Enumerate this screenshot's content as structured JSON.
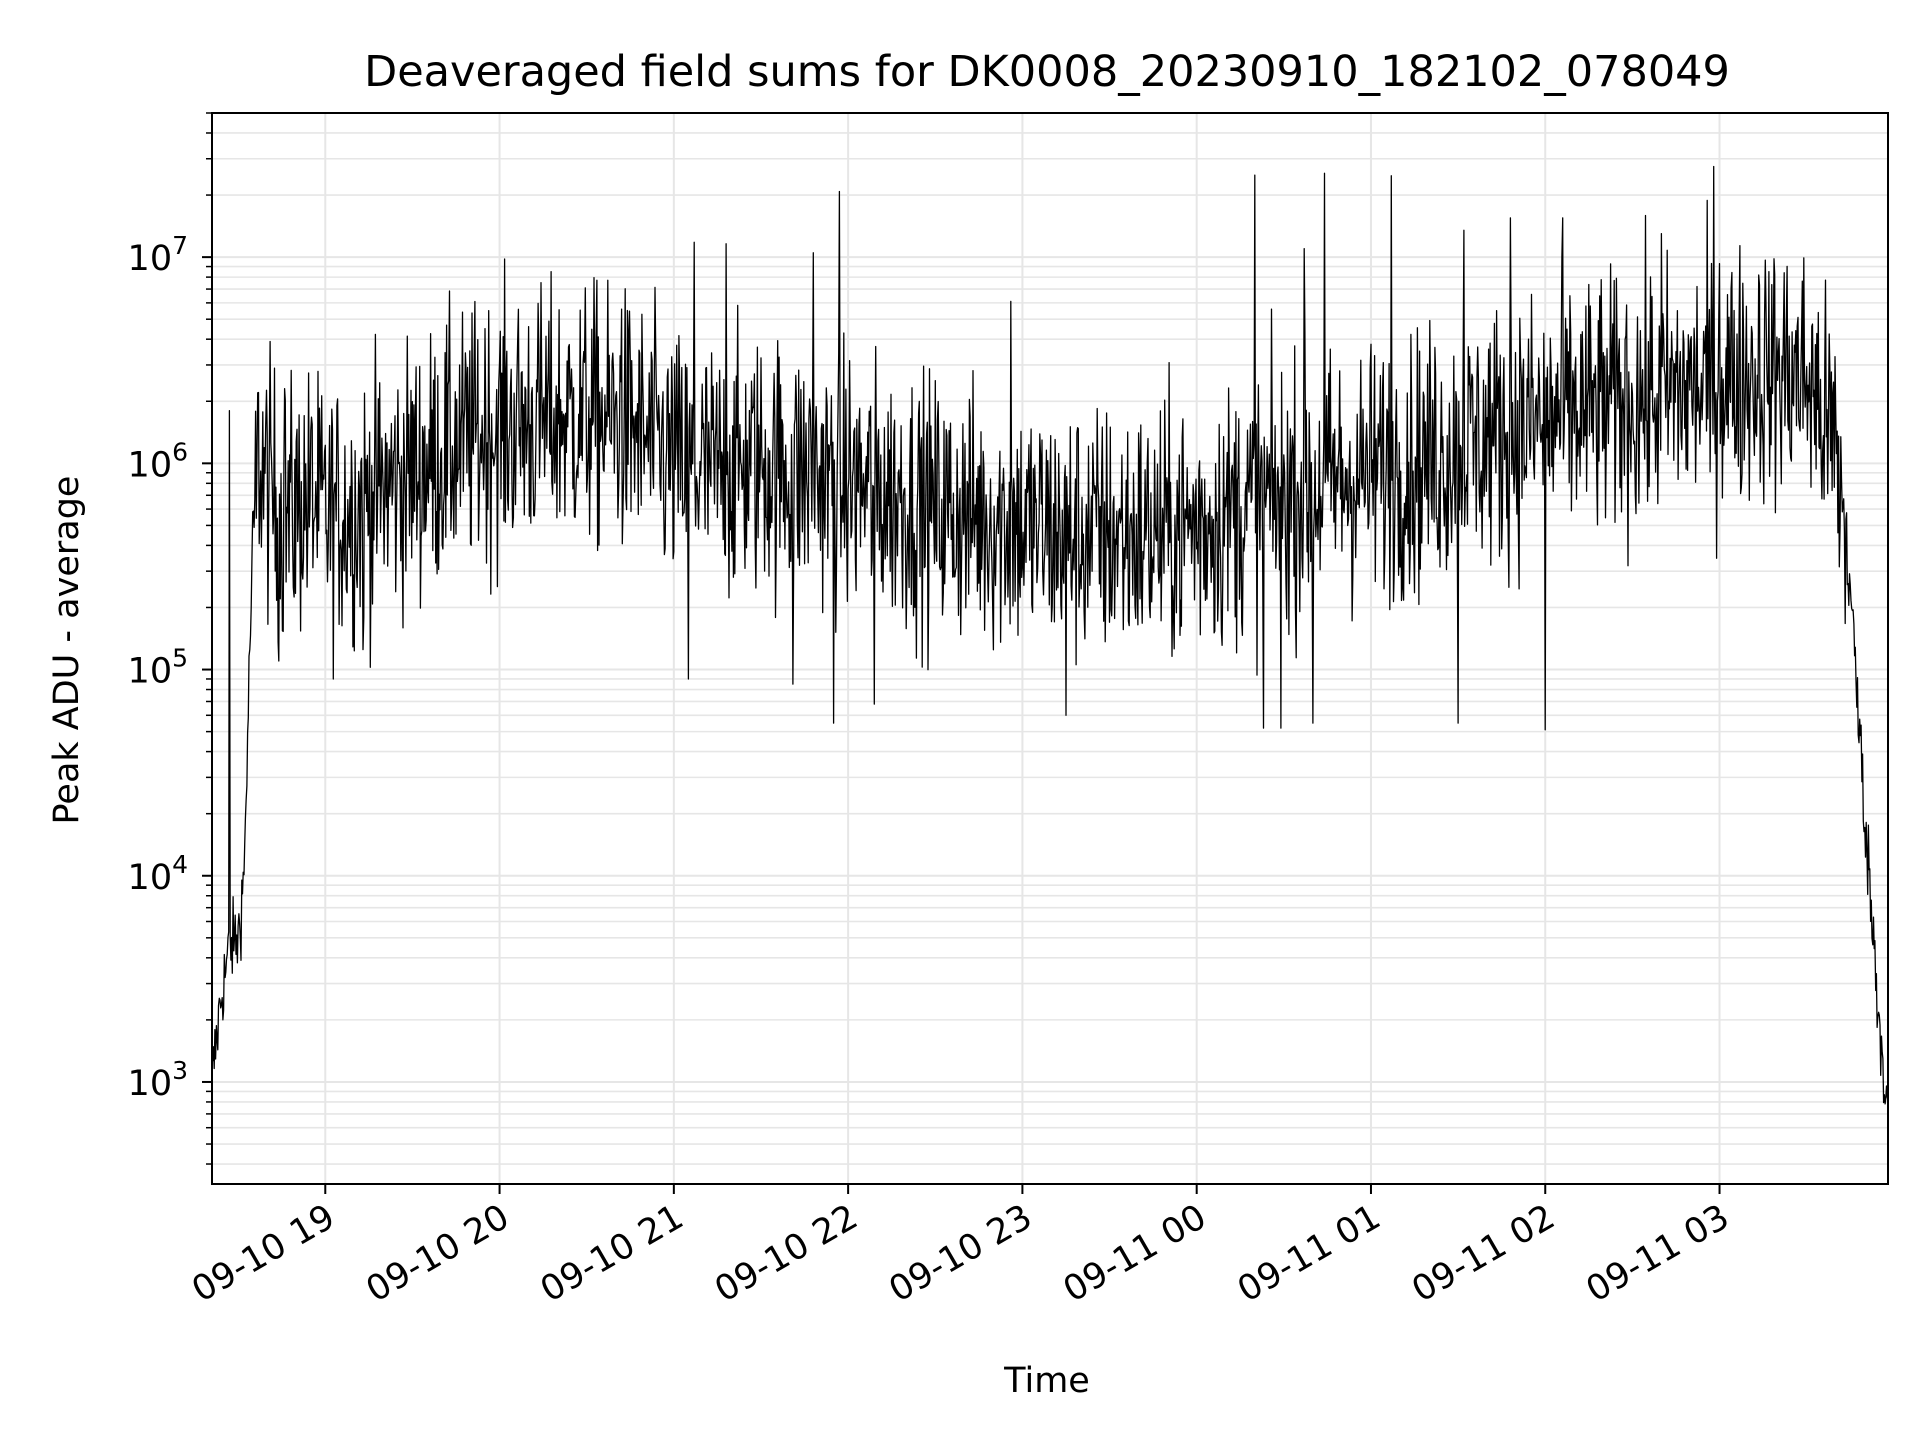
{
  "chart_data": {
    "type": "line",
    "title": "Deaveraged field sums for DK0008_20230910_182102_078049",
    "xlabel": "Time",
    "ylabel": "Peak ADU - average",
    "x_start": "09-10 18:21",
    "x_end": "09-11 03:58",
    "xticks": [
      {
        "time": "09-10 19:00",
        "label": "09-10 19"
      },
      {
        "time": "09-10 20:00",
        "label": "09-10 20"
      },
      {
        "time": "09-10 21:00",
        "label": "09-10 21"
      },
      {
        "time": "09-10 22:00",
        "label": "09-10 22"
      },
      {
        "time": "09-10 23:00",
        "label": "09-10 23"
      },
      {
        "time": "09-11 00:00",
        "label": "09-11 00"
      },
      {
        "time": "09-11 01:00",
        "label": "09-11 01"
      },
      {
        "time": "09-11 02:00",
        "label": "09-11 02"
      },
      {
        "time": "09-11 03:00",
        "label": "09-11 03"
      }
    ],
    "yscale": "log",
    "ylim": [
      320,
      50000000
    ],
    "yticks": [
      {
        "value": 1000,
        "base": "10",
        "exp": "3"
      },
      {
        "value": 10000,
        "base": "10",
        "exp": "4"
      },
      {
        "value": 100000,
        "base": "10",
        "exp": "5"
      },
      {
        "value": 1000000,
        "base": "10",
        "exp": "6"
      },
      {
        "value": 10000000,
        "base": "10",
        "exp": "7"
      }
    ],
    "grid": true,
    "line_color": "#000000",
    "grid_color": "#e6e6e6",
    "series": [
      {
        "x": [
          "09-10 18:21",
          "09-10 18:24",
          "09-10 18:27",
          "09-10 18:30",
          "09-10 18:32",
          "09-10 18:35",
          "09-10 18:37",
          "09-10 18:40",
          "09-10 18:45",
          "09-10 18:50",
          "09-10 18:55",
          "09-10 19:00",
          "09-10 19:10",
          "09-10 19:20",
          "09-10 19:30",
          "09-10 19:40",
          "09-10 19:50",
          "09-10 20:00",
          "09-10 20:15",
          "09-10 20:30",
          "09-10 20:45",
          "09-10 21:00",
          "09-10 21:15",
          "09-10 21:30",
          "09-10 21:45",
          "09-10 22:00",
          "09-10 22:15",
          "09-10 22:30",
          "09-10 22:45",
          "09-10 23:00",
          "09-10 23:15",
          "09-10 23:30",
          "09-10 23:45",
          "09-11 00:00",
          "09-11 00:15",
          "09-11 00:30",
          "09-11 00:45",
          "09-11 01:00",
          "09-11 01:15",
          "09-11 01:30",
          "09-11 01:45",
          "09-11 02:00",
          "09-11 02:15",
          "09-11 02:30",
          "09-11 02:45",
          "09-11 03:00",
          "09-11 03:15",
          "09-11 03:30",
          "09-11 03:40",
          "09-11 03:45",
          "09-11 03:50",
          "09-11 03:55",
          "09-11 03:58"
        ],
        "y": [
          1000,
          2500,
          4500,
          5000,
          10000,
          400000,
          1100000,
          800000,
          550000,
          600000,
          700000,
          550000,
          600000,
          750000,
          900000,
          1100000,
          1300000,
          1500000,
          1600000,
          1700000,
          1500000,
          1000000,
          900000,
          1000000,
          900000,
          800000,
          700000,
          600000,
          550000,
          500000,
          450000,
          450000,
          450000,
          500000,
          600000,
          700000,
          800000,
          900000,
          1000000,
          1200000,
          1400000,
          1600000,
          1800000,
          2000000,
          2200000,
          2500000,
          2800000,
          2600000,
          1200000,
          250000,
          20000,
          2000,
          700
        ]
      }
    ],
    "spikes": [
      {
        "time": "09-10 18:46",
        "value": 2300000
      },
      {
        "time": "09-10 19:55",
        "value": 4500000
      },
      {
        "time": "09-10 20:10",
        "value": 4600000
      },
      {
        "time": "09-10 20:42",
        "value": 5600000
      },
      {
        "time": "09-10 21:07",
        "value": 11800000
      },
      {
        "time": "09-10 21:18",
        "value": 11600000
      },
      {
        "time": "09-10 21:48",
        "value": 10500000
      },
      {
        "time": "09-10 21:57",
        "value": 20800000
      },
      {
        "time": "09-10 22:56",
        "value": 6100000
      },
      {
        "time": "09-11 00:20",
        "value": 25000000
      },
      {
        "time": "09-11 00:37",
        "value": 11000000
      },
      {
        "time": "09-11 00:44",
        "value": 25500000
      },
      {
        "time": "09-11 01:07",
        "value": 24800000
      },
      {
        "time": "09-11 01:32",
        "value": 13500000
      },
      {
        "time": "09-11 01:48",
        "value": 15500000
      },
      {
        "time": "09-11 02:06",
        "value": 15500000
      },
      {
        "time": "09-11 02:40",
        "value": 13000000
      },
      {
        "time": "09-11 02:58",
        "value": 27500000
      },
      {
        "time": "09-11 03:00",
        "value": 9300000
      }
    ],
    "dips": [
      {
        "time": "09-10 18:27",
        "value": 1800000
      },
      {
        "time": "09-10 18:44",
        "value": 110000
      },
      {
        "time": "09-10 19:13",
        "value": 125000
      },
      {
        "time": "09-10 21:05",
        "value": 90000
      },
      {
        "time": "09-10 21:41",
        "value": 85000
      },
      {
        "time": "09-10 21:55",
        "value": 55000
      },
      {
        "time": "09-10 22:09",
        "value": 68000
      },
      {
        "time": "09-10 23:15",
        "value": 60000
      },
      {
        "time": "09-11 00:23",
        "value": 52000
      },
      {
        "time": "09-11 00:29",
        "value": 52000
      },
      {
        "time": "09-11 00:40",
        "value": 55000
      },
      {
        "time": "09-11 01:30",
        "value": 55000
      },
      {
        "time": "09-11 02:00",
        "value": 51000
      }
    ]
  }
}
